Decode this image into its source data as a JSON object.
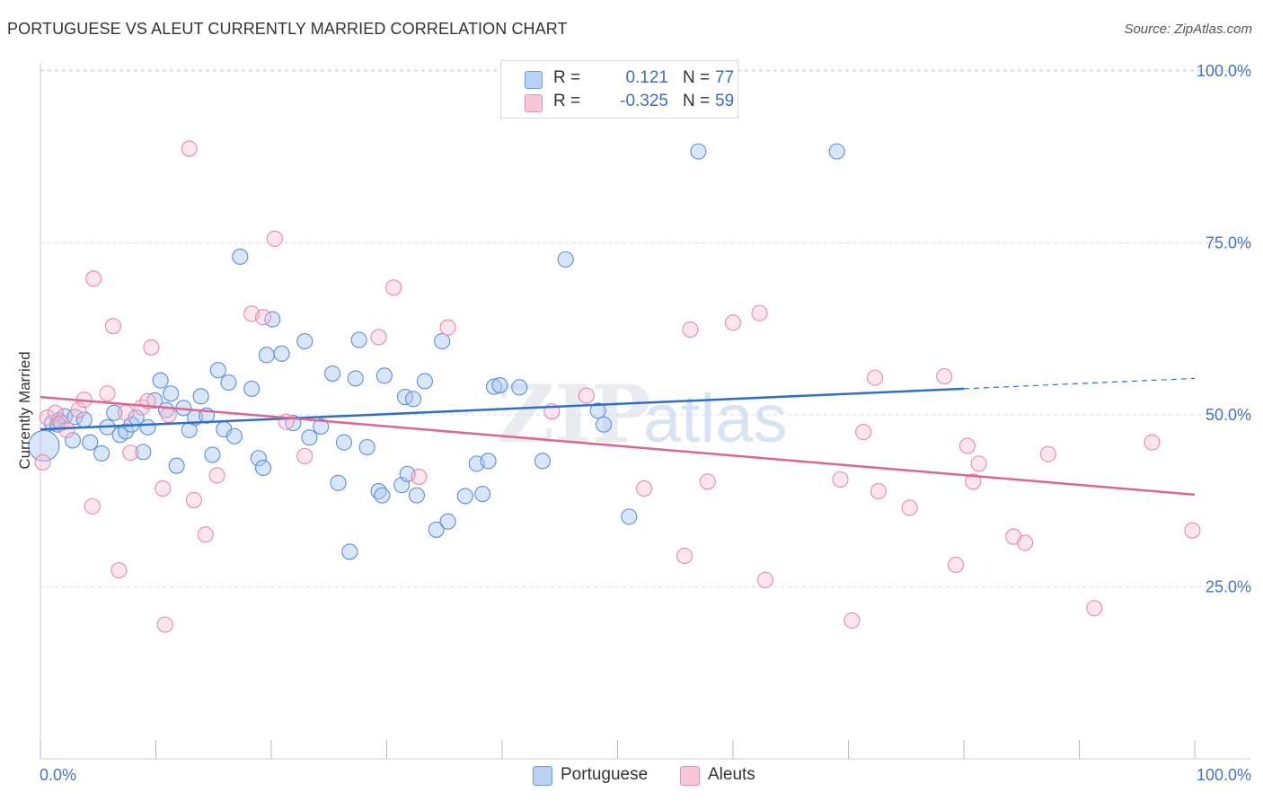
{
  "title": "PORTUGUESE VS ALEUT CURRENTLY MARRIED CORRELATION CHART",
  "source": "Source: ZipAtlas.com",
  "watermark": {
    "zip": "ZIP",
    "atlas": "atlas"
  },
  "legend": {
    "r_label": "R =",
    "n_label": "N =",
    "rows": [
      {
        "r": "0.121",
        "n": "77"
      },
      {
        "r": "-0.325",
        "n": "59"
      }
    ]
  },
  "bottom_legend": [
    "Portuguese",
    "Aleuts"
  ],
  "chart_data": {
    "type": "scatter",
    "title": "PORTUGUESE VS ALEUT CURRENTLY MARRIED CORRELATION CHART",
    "xlabel": "",
    "ylabel": "Currently Married",
    "xlim": [
      0,
      100
    ],
    "ylim": [
      4,
      102
    ],
    "x_tick_labels": [
      "0.0%",
      "100.0%"
    ],
    "y_ticks": [
      25,
      50,
      75,
      100
    ],
    "y_tick_labels": [
      "25.0%",
      "50.0%",
      "75.0%",
      "100.0%"
    ],
    "colors": {
      "Portuguese": "#4a86d8",
      "Aleuts": "#e87fa3",
      "portuguese_line": "#2f6fcb",
      "aleuts_line": "#e0648f"
    },
    "series": [
      {
        "name": "Portuguese",
        "r": 0.121,
        "n": 77,
        "trend": {
          "x0": 0,
          "y0": 47.9,
          "x1": 80,
          "y1": 53.8,
          "dashed_to_x": 100,
          "dashed_to_y": 55.3
        },
        "points": [
          [
            0.3,
            45.5
          ],
          [
            1.0,
            48.8
          ],
          [
            1.6,
            49.2
          ],
          [
            2.1,
            49.8
          ],
          [
            2.8,
            46.3
          ],
          [
            3.0,
            49.7
          ],
          [
            3.8,
            49.3
          ],
          [
            4.3,
            46.0
          ],
          [
            5.3,
            44.4
          ],
          [
            5.8,
            48.2
          ],
          [
            6.4,
            50.3
          ],
          [
            6.9,
            47.1
          ],
          [
            7.4,
            47.6
          ],
          [
            7.9,
            48.6
          ],
          [
            8.3,
            49.6
          ],
          [
            8.9,
            44.6
          ],
          [
            9.3,
            48.2
          ],
          [
            9.9,
            52.1
          ],
          [
            10.4,
            55.0
          ],
          [
            10.9,
            50.7
          ],
          [
            11.3,
            53.1
          ],
          [
            11.8,
            42.6
          ],
          [
            12.4,
            51.0
          ],
          [
            12.9,
            47.8
          ],
          [
            13.4,
            49.6
          ],
          [
            13.9,
            52.7
          ],
          [
            14.4,
            49.9
          ],
          [
            14.9,
            44.2
          ],
          [
            15.4,
            56.5
          ],
          [
            15.9,
            47.9
          ],
          [
            16.3,
            54.7
          ],
          [
            16.8,
            46.9
          ],
          [
            17.3,
            73.0
          ],
          [
            18.3,
            53.8
          ],
          [
            18.9,
            43.7
          ],
          [
            19.3,
            42.3
          ],
          [
            19.6,
            58.7
          ],
          [
            20.1,
            63.9
          ],
          [
            20.9,
            58.9
          ],
          [
            21.9,
            48.8
          ],
          [
            22.9,
            60.7
          ],
          [
            23.3,
            46.7
          ],
          [
            24.3,
            48.3
          ],
          [
            25.3,
            56.0
          ],
          [
            25.8,
            40.1
          ],
          [
            26.3,
            46.0
          ],
          [
            26.8,
            30.1
          ],
          [
            27.3,
            55.3
          ],
          [
            27.6,
            60.9
          ],
          [
            28.3,
            45.3
          ],
          [
            29.3,
            38.9
          ],
          [
            29.6,
            38.3
          ],
          [
            29.8,
            55.7
          ],
          [
            31.3,
            39.8
          ],
          [
            31.6,
            52.6
          ],
          [
            31.8,
            41.4
          ],
          [
            32.3,
            52.3
          ],
          [
            32.6,
            38.3
          ],
          [
            33.3,
            54.9
          ],
          [
            34.3,
            33.3
          ],
          [
            34.8,
            60.7
          ],
          [
            35.3,
            34.5
          ],
          [
            36.8,
            38.2
          ],
          [
            37.8,
            42.9
          ],
          [
            38.3,
            38.5
          ],
          [
            38.8,
            43.3
          ],
          [
            39.3,
            54.1
          ],
          [
            39.8,
            54.3
          ],
          [
            41.5,
            54.0
          ],
          [
            43.5,
            43.3
          ],
          [
            45.5,
            72.6
          ],
          [
            48.3,
            50.6
          ],
          [
            48.8,
            48.6
          ],
          [
            51.0,
            35.2
          ],
          [
            57.0,
            88.3
          ],
          [
            69.0,
            88.3
          ],
          [
            1.5,
            48.6
          ]
        ]
      },
      {
        "name": "Aleuts",
        "r": -0.325,
        "n": 59,
        "trend": {
          "x0": 0,
          "y0": 52.6,
          "x1": 100,
          "y1": 38.4
        },
        "points": [
          [
            0.2,
            43.1
          ],
          [
            0.6,
            49.6
          ],
          [
            1.3,
            50.3
          ],
          [
            1.8,
            48.8
          ],
          [
            2.3,
            47.8
          ],
          [
            3.3,
            50.7
          ],
          [
            3.8,
            52.2
          ],
          [
            4.5,
            36.7
          ],
          [
            4.6,
            69.8
          ],
          [
            5.8,
            53.1
          ],
          [
            6.3,
            62.9
          ],
          [
            6.8,
            27.4
          ],
          [
            7.4,
            50.3
          ],
          [
            7.8,
            44.5
          ],
          [
            8.8,
            51.1
          ],
          [
            9.3,
            52.0
          ],
          [
            9.6,
            59.8
          ],
          [
            10.6,
            39.3
          ],
          [
            10.8,
            19.5
          ],
          [
            11.1,
            50.0
          ],
          [
            12.9,
            88.7
          ],
          [
            13.3,
            37.6
          ],
          [
            14.3,
            32.6
          ],
          [
            15.3,
            41.2
          ],
          [
            18.3,
            64.7
          ],
          [
            19.3,
            64.2
          ],
          [
            20.3,
            75.6
          ],
          [
            21.3,
            49.0
          ],
          [
            22.9,
            44.0
          ],
          [
            29.3,
            61.3
          ],
          [
            30.6,
            68.5
          ],
          [
            32.8,
            41.0
          ],
          [
            35.3,
            62.7
          ],
          [
            44.3,
            50.5
          ],
          [
            47.3,
            52.8
          ],
          [
            52.3,
            39.3
          ],
          [
            55.8,
            29.5
          ],
          [
            56.3,
            62.4
          ],
          [
            57.8,
            40.3
          ],
          [
            60.0,
            63.4
          ],
          [
            62.3,
            64.8
          ],
          [
            62.8,
            26.0
          ],
          [
            69.3,
            40.6
          ],
          [
            70.3,
            20.1
          ],
          [
            71.3,
            47.5
          ],
          [
            72.3,
            55.4
          ],
          [
            72.6,
            38.9
          ],
          [
            75.3,
            36.5
          ],
          [
            78.3,
            55.6
          ],
          [
            79.3,
            28.2
          ],
          [
            80.3,
            45.5
          ],
          [
            80.8,
            40.3
          ],
          [
            81.3,
            42.9
          ],
          [
            84.3,
            32.3
          ],
          [
            85.3,
            31.4
          ],
          [
            87.3,
            44.3
          ],
          [
            91.3,
            21.9
          ],
          [
            96.3,
            46.0
          ],
          [
            99.8,
            33.2
          ]
        ]
      }
    ]
  }
}
